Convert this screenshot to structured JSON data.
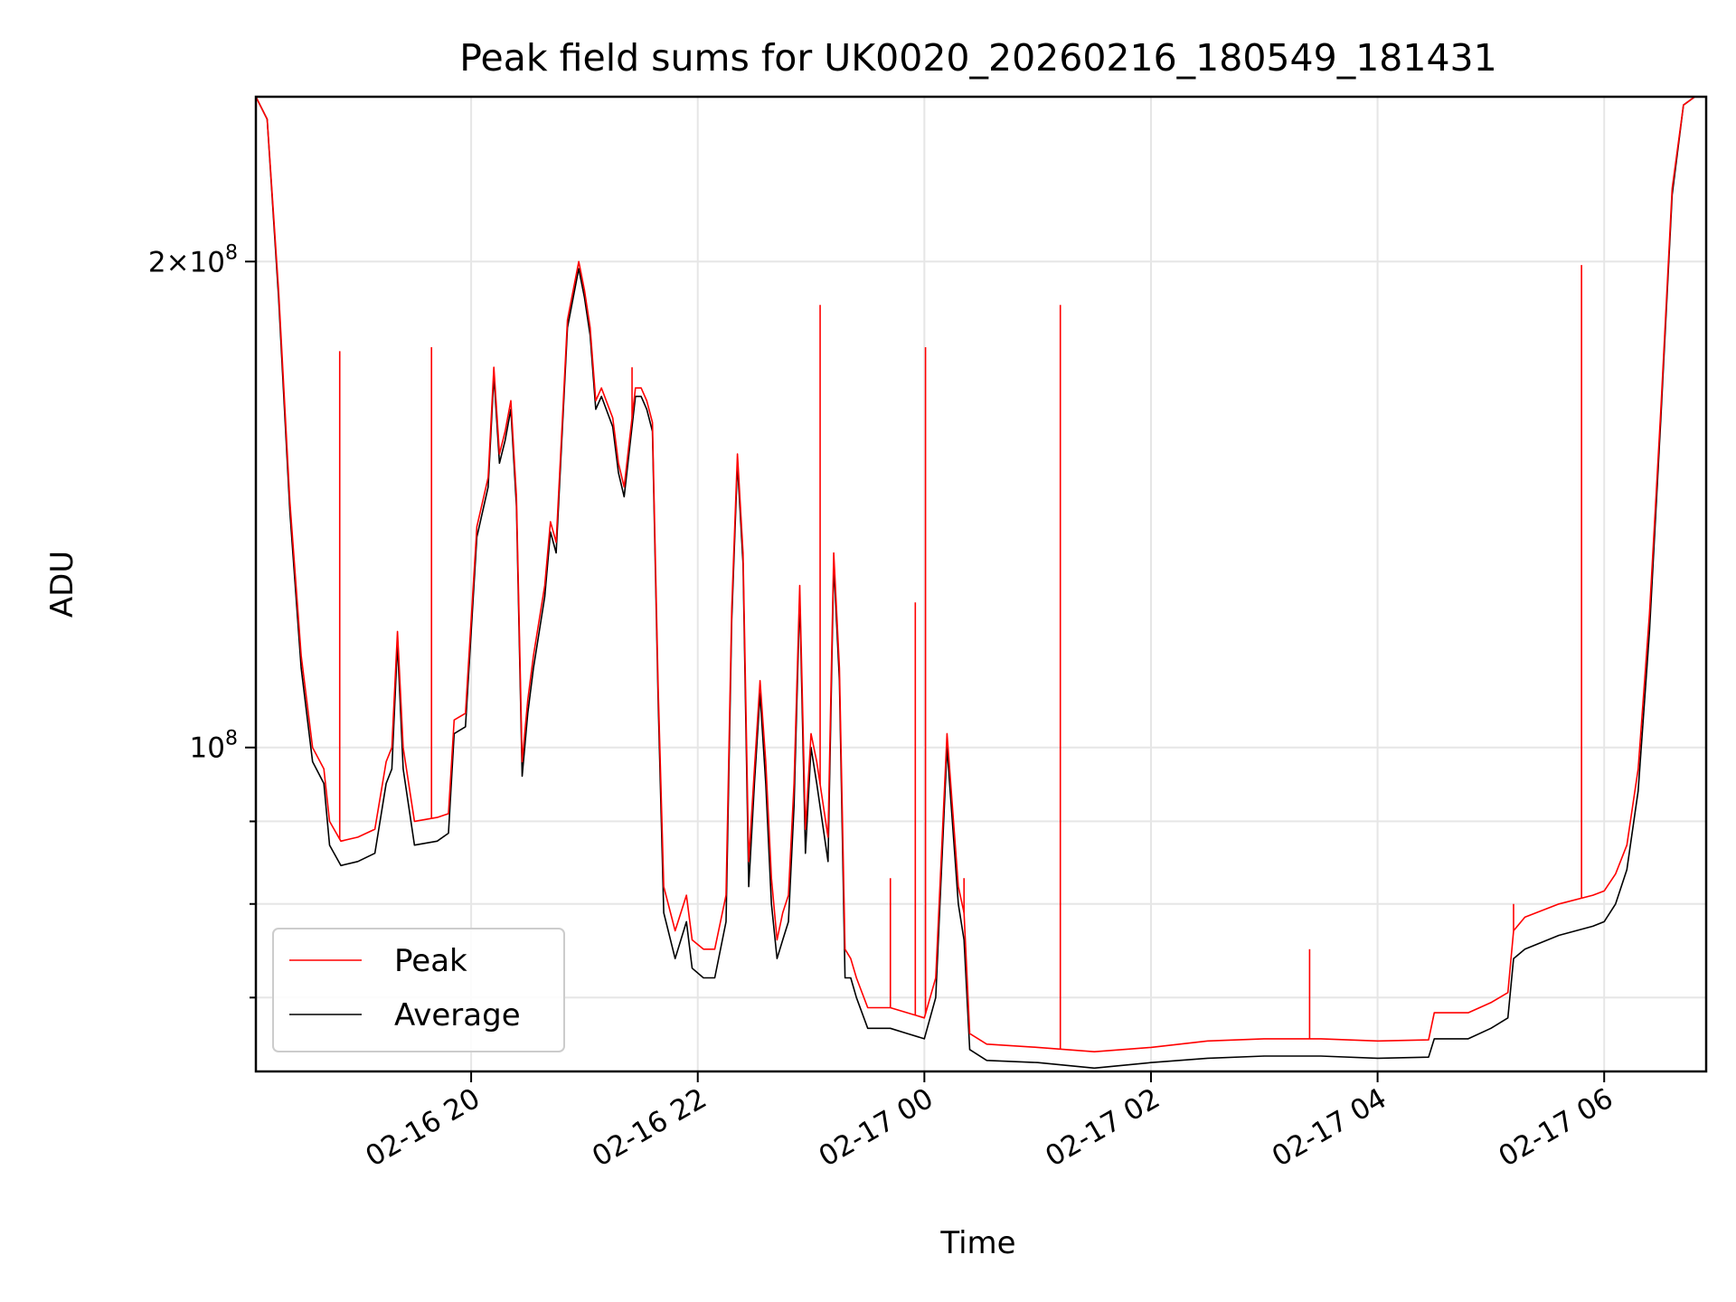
{
  "chart_data": {
    "type": "line",
    "title": "Peak field sums for UK0020_20260216_180549_181431",
    "xlabel": "Time",
    "ylabel": "ADU",
    "x_axis": {
      "unit": "hours since 2026-02-16 00:00",
      "range": [
        18.1,
        30.9
      ],
      "ticks": [
        {
          "value": 20,
          "label": "02-16 20"
        },
        {
          "value": 22,
          "label": "02-16 22"
        },
        {
          "value": 24,
          "label": "02-17 00"
        },
        {
          "value": 26,
          "label": "02-17 02"
        },
        {
          "value": 28,
          "label": "02-17 04"
        },
        {
          "value": 30,
          "label": "02-17 06"
        }
      ]
    },
    "y_axis": {
      "scale": "log",
      "range": [
        63000000,
        253000000
      ],
      "major_ticks": [
        {
          "value": 100000000,
          "base": "10",
          "exp": "8",
          "coef": ""
        },
        {
          "value": 200000000,
          "base": "10",
          "exp": "8",
          "coef": "2×"
        }
      ],
      "minor_ticks": [
        70000000,
        80000000,
        90000000
      ]
    },
    "grid": true,
    "legend": {
      "position": "lower-left",
      "entries": [
        {
          "name": "Peak",
          "color": "#ff0000"
        },
        {
          "name": "Average",
          "color": "#000000"
        }
      ]
    },
    "series": [
      {
        "name": "Average",
        "color": "#000000",
        "points": [
          [
            18.1,
            253000000
          ],
          [
            18.2,
            245000000
          ],
          [
            18.3,
            190000000
          ],
          [
            18.4,
            140000000
          ],
          [
            18.5,
            112000000
          ],
          [
            18.6,
            98000000
          ],
          [
            18.7,
            95000000
          ],
          [
            18.75,
            87000000
          ],
          [
            18.85,
            84500000
          ],
          [
            19.0,
            85000000
          ],
          [
            19.15,
            86000000
          ],
          [
            19.25,
            95000000
          ],
          [
            19.3,
            97000000
          ],
          [
            19.35,
            116000000
          ],
          [
            19.4,
            97000000
          ],
          [
            19.5,
            87000000
          ],
          [
            19.7,
            87500000
          ],
          [
            19.8,
            88500000
          ],
          [
            19.85,
            102000000
          ],
          [
            19.95,
            103000000
          ],
          [
            20.05,
            135000000
          ],
          [
            20.15,
            145000000
          ],
          [
            20.2,
            170000000
          ],
          [
            20.25,
            150000000
          ],
          [
            20.3,
            155000000
          ],
          [
            20.35,
            162000000
          ],
          [
            20.4,
            141000000
          ],
          [
            20.45,
            96000000
          ],
          [
            20.5,
            105000000
          ],
          [
            20.55,
            112000000
          ],
          [
            20.65,
            124000000
          ],
          [
            20.7,
            136000000
          ],
          [
            20.75,
            132000000
          ],
          [
            20.85,
            182000000
          ],
          [
            20.95,
            198000000
          ],
          [
            21.0,
            190000000
          ],
          [
            21.05,
            180000000
          ],
          [
            21.1,
            162000000
          ],
          [
            21.15,
            165000000
          ],
          [
            21.25,
            158000000
          ],
          [
            21.3,
            148000000
          ],
          [
            21.35,
            143000000
          ],
          [
            21.45,
            165000000
          ],
          [
            21.5,
            165000000
          ],
          [
            21.55,
            162000000
          ],
          [
            21.6,
            157000000
          ],
          [
            21.65,
            107000000
          ],
          [
            21.7,
            79000000
          ],
          [
            21.8,
            74000000
          ],
          [
            21.9,
            78000000
          ],
          [
            21.95,
            73000000
          ],
          [
            22.05,
            72000000
          ],
          [
            22.15,
            72000000
          ],
          [
            22.25,
            78000000
          ],
          [
            22.3,
            120000000
          ],
          [
            22.35,
            150000000
          ],
          [
            22.4,
            130000000
          ],
          [
            22.45,
            82000000
          ],
          [
            22.5,
            95000000
          ],
          [
            22.55,
            108000000
          ],
          [
            22.6,
            95000000
          ],
          [
            22.65,
            80000000
          ],
          [
            22.7,
            74000000
          ],
          [
            22.75,
            76000000
          ],
          [
            22.8,
            78000000
          ],
          [
            22.85,
            92000000
          ],
          [
            22.9,
            124000000
          ],
          [
            22.95,
            86000000
          ],
          [
            23.0,
            100000000
          ],
          [
            23.05,
            95000000
          ],
          [
            23.15,
            85000000
          ],
          [
            23.2,
            130000000
          ],
          [
            23.25,
            110000000
          ],
          [
            23.3,
            72000000
          ],
          [
            23.35,
            72000000
          ],
          [
            23.4,
            70000000
          ],
          [
            23.5,
            67000000
          ],
          [
            23.6,
            67000000
          ],
          [
            23.7,
            67000000
          ],
          [
            23.85,
            66500000
          ],
          [
            24.0,
            66000000
          ],
          [
            24.1,
            70000000
          ],
          [
            24.2,
            100000000
          ],
          [
            24.3,
            80000000
          ],
          [
            24.35,
            76000000
          ],
          [
            24.4,
            65000000
          ],
          [
            24.55,
            64000000
          ],
          [
            25.0,
            63800000
          ],
          [
            25.5,
            63300000
          ],
          [
            26.0,
            63800000
          ],
          [
            26.5,
            64200000
          ],
          [
            27.0,
            64400000
          ],
          [
            27.5,
            64400000
          ],
          [
            28.0,
            64200000
          ],
          [
            28.45,
            64300000
          ],
          [
            28.5,
            66000000
          ],
          [
            28.8,
            66000000
          ],
          [
            29.0,
            67000000
          ],
          [
            29.15,
            68000000
          ],
          [
            29.2,
            74000000
          ],
          [
            29.3,
            75000000
          ],
          [
            29.6,
            76500000
          ],
          [
            29.9,
            77500000
          ],
          [
            30.0,
            78000000
          ],
          [
            30.1,
            80000000
          ],
          [
            30.2,
            84000000
          ],
          [
            30.3,
            94000000
          ],
          [
            30.4,
            118000000
          ],
          [
            30.5,
            160000000
          ],
          [
            30.6,
            220000000
          ],
          [
            30.7,
            250000000
          ],
          [
            30.8,
            253000000
          ]
        ]
      },
      {
        "name": "Peak",
        "color": "#ff0000",
        "points": [
          [
            18.1,
            253000000
          ],
          [
            18.2,
            245000000
          ],
          [
            18.3,
            192000000
          ],
          [
            18.4,
            142000000
          ],
          [
            18.5,
            114000000
          ],
          [
            18.6,
            100000000
          ],
          [
            18.7,
            97000000
          ],
          [
            18.75,
            90000000
          ],
          [
            18.85,
            87500000
          ],
          [
            19.0,
            88000000
          ],
          [
            19.15,
            89000000
          ],
          [
            19.25,
            98000000
          ],
          [
            19.3,
            100000000
          ],
          [
            19.35,
            118000000
          ],
          [
            19.4,
            100000000
          ],
          [
            19.5,
            90000000
          ],
          [
            19.7,
            90500000
          ],
          [
            19.8,
            91000000
          ],
          [
            19.85,
            104000000
          ],
          [
            19.95,
            105000000
          ],
          [
            20.05,
            137000000
          ],
          [
            20.15,
            147000000
          ],
          [
            20.2,
            172000000
          ],
          [
            20.25,
            152000000
          ],
          [
            20.3,
            157000000
          ],
          [
            20.35,
            164000000
          ],
          [
            20.4,
            143000000
          ],
          [
            20.45,
            98000000
          ],
          [
            20.5,
            107000000
          ],
          [
            20.55,
            114000000
          ],
          [
            20.65,
            126000000
          ],
          [
            20.7,
            138000000
          ],
          [
            20.75,
            134000000
          ],
          [
            20.85,
            184000000
          ],
          [
            20.95,
            200000000
          ],
          [
            21.0,
            192000000
          ],
          [
            21.05,
            182000000
          ],
          [
            21.1,
            164000000
          ],
          [
            21.15,
            167000000
          ],
          [
            21.25,
            160000000
          ],
          [
            21.3,
            150000000
          ],
          [
            21.35,
            145000000
          ],
          [
            21.45,
            167000000
          ],
          [
            21.5,
            167000000
          ],
          [
            21.55,
            164000000
          ],
          [
            21.6,
            159000000
          ],
          [
            21.65,
            109000000
          ],
          [
            21.7,
            82000000
          ],
          [
            21.8,
            77000000
          ],
          [
            21.9,
            81000000
          ],
          [
            21.95,
            76000000
          ],
          [
            22.05,
            75000000
          ],
          [
            22.15,
            75000000
          ],
          [
            22.25,
            81000000
          ],
          [
            22.3,
            122000000
          ],
          [
            22.35,
            152000000
          ],
          [
            22.4,
            132000000
          ],
          [
            22.45,
            85000000
          ],
          [
            22.5,
            97000000
          ],
          [
            22.55,
            110000000
          ],
          [
            22.6,
            98000000
          ],
          [
            22.65,
            83000000
          ],
          [
            22.7,
            76000000
          ],
          [
            22.75,
            79000000
          ],
          [
            22.8,
            81000000
          ],
          [
            22.85,
            95000000
          ],
          [
            22.9,
            126000000
          ],
          [
            22.95,
            89000000
          ],
          [
            23.0,
            102000000
          ],
          [
            23.05,
            98000000
          ],
          [
            23.15,
            88000000
          ],
          [
            23.2,
            132000000
          ],
          [
            23.25,
            112000000
          ],
          [
            23.3,
            75000000
          ],
          [
            23.35,
            74000000
          ],
          [
            23.4,
            72000000
          ],
          [
            23.5,
            69000000
          ],
          [
            23.6,
            69000000
          ],
          [
            23.7,
            69000000
          ],
          [
            23.85,
            68500000
          ],
          [
            24.0,
            68000000
          ],
          [
            24.1,
            72000000
          ],
          [
            24.2,
            102000000
          ],
          [
            24.3,
            82000000
          ],
          [
            24.35,
            79000000
          ],
          [
            24.4,
            66500000
          ],
          [
            24.55,
            65500000
          ],
          [
            25.0,
            65200000
          ],
          [
            25.5,
            64800000
          ],
          [
            26.0,
            65200000
          ],
          [
            26.5,
            65800000
          ],
          [
            27.0,
            66000000
          ],
          [
            27.5,
            66000000
          ],
          [
            28.0,
            65800000
          ],
          [
            28.45,
            65900000
          ],
          [
            28.5,
            68500000
          ],
          [
            28.8,
            68500000
          ],
          [
            29.0,
            69500000
          ],
          [
            29.15,
            70500000
          ],
          [
            29.2,
            77000000
          ],
          [
            29.3,
            78500000
          ],
          [
            29.6,
            80000000
          ],
          [
            29.9,
            81000000
          ],
          [
            30.0,
            81500000
          ],
          [
            30.1,
            83500000
          ],
          [
            30.2,
            87000000
          ],
          [
            30.3,
            97000000
          ],
          [
            30.4,
            121000000
          ],
          [
            30.5,
            162000000
          ],
          [
            30.6,
            222000000
          ],
          [
            30.7,
            250000000
          ],
          [
            30.8,
            253000000
          ]
        ]
      }
    ],
    "spikes": [
      {
        "series": "Peak",
        "x": 18.84,
        "y": 176000000
      },
      {
        "series": "Peak",
        "x": 19.65,
        "y": 177000000
      },
      {
        "series": "Peak",
        "x": 21.42,
        "y": 172000000
      },
      {
        "series": "Peak",
        "x": 23.08,
        "y": 188000000
      },
      {
        "series": "Peak",
        "x": 23.92,
        "y": 123000000
      },
      {
        "series": "Peak",
        "x": 24.01,
        "y": 177000000
      },
      {
        "series": "Peak",
        "x": 25.2,
        "y": 188000000
      },
      {
        "series": "Peak",
        "x": 23.7,
        "y": 83000000
      },
      {
        "series": "Peak",
        "x": 24.35,
        "y": 83000000
      },
      {
        "series": "Peak",
        "x": 27.4,
        "y": 75000000
      },
      {
        "series": "Peak",
        "x": 29.8,
        "y": 199000000
      },
      {
        "series": "Peak",
        "x": 29.2,
        "y": 80000000
      }
    ]
  }
}
